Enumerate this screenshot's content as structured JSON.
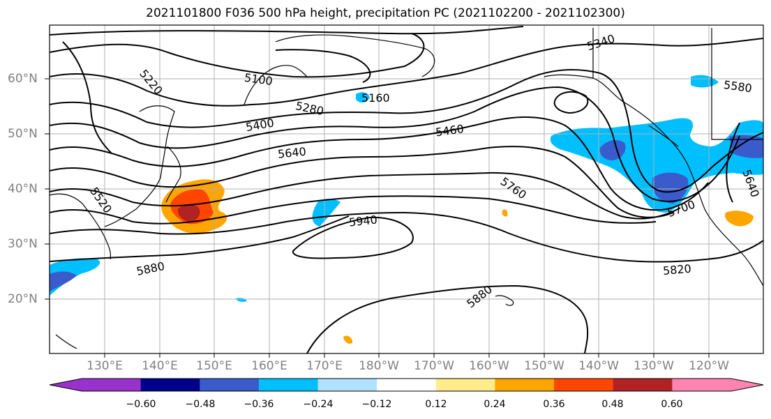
{
  "title": "2021101800 F036 500 hPa height, precipitation PC (2021102200 - 2021102300)",
  "lat_labels": [
    "60°N",
    "50°N",
    "40°N",
    "30°N",
    "20°N"
  ],
  "lon_labels": [
    "130°E",
    "140°E",
    "150°E",
    "160°E",
    "170°E",
    "180°W",
    "170°W",
    "160°W",
    "150°W",
    "140°W",
    "130°W",
    "120°W"
  ],
  "contour_labels": [
    "5220",
    "5100",
    "5160",
    "5340",
    "5580",
    "5280",
    "5400",
    "5460",
    "5640",
    "5520",
    "5760",
    "5700",
    "5640",
    "5940",
    "5880",
    "5820",
    "5880"
  ],
  "colorbar": {
    "colors": [
      "#9932CC",
      "#00008B",
      "#3A5BCC",
      "#00BFFF",
      "#B0E2FF",
      "#FFFFFF",
      "#FFEC8B",
      "#FFA500",
      "#FF4500",
      "#B22222",
      "#FF85B0"
    ],
    "ticks": [
      "−0.60",
      "−0.48",
      "−0.36",
      "−0.24",
      "−0.12",
      "0.12",
      "0.24",
      "0.36",
      "0.48",
      "0.60"
    ]
  },
  "colors": {
    "grid": "#b0b0b0",
    "contour": "#000000",
    "tick_text": "#808080"
  }
}
